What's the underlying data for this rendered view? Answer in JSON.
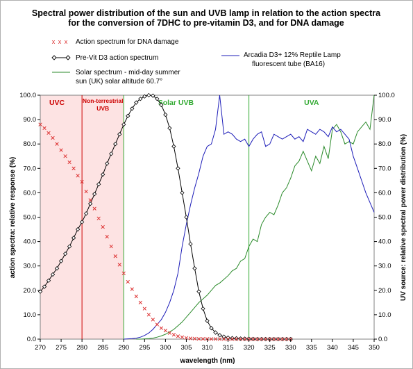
{
  "chart_data": {
    "type": "line",
    "title_line1": "Spectral power distribution of the sun and UVB lamp in relation to the action spectra",
    "title_line2": "for the conversion of 7DHC to pre-vitamin D3, and for DNA damage",
    "xlabel": "wavelength (nm)",
    "ylabel_left": "action spectra: relative response (%)",
    "ylabel_right": "UV source: relative spectral power distribution (%)",
    "xlim": [
      270,
      350
    ],
    "ylim": [
      0,
      100
    ],
    "x_ticks": [
      270,
      275,
      280,
      285,
      290,
      295,
      300,
      305,
      310,
      315,
      320,
      325,
      330,
      335,
      340,
      345,
      350
    ],
    "y_ticks": [
      "0.0",
      "10.0",
      "20.0",
      "30.0",
      "40.0",
      "50.0",
      "60.0",
      "70.0",
      "80.0",
      "90.0",
      "100.0"
    ],
    "regions": [
      {
        "label": "UVC",
        "x_start": 270,
        "x_end": 280,
        "label_x": 274,
        "color": "#cc0000",
        "shaded": true
      },
      {
        "label_line1": "Non-terrestrial",
        "label_line2": "UVB",
        "x_start": 280,
        "x_end": 290,
        "label_x": 285,
        "color": "#cc0000",
        "shaded": true
      },
      {
        "label": "Solar UVB",
        "x_start": 290,
        "x_end": 320,
        "label_x": 302.5,
        "color": "#33aa33",
        "shaded": false
      },
      {
        "label": "UVA",
        "x_start": 320,
        "x_end": 350,
        "label_x": 335,
        "color": "#33aa33",
        "shaded": false
      }
    ],
    "boundaries": [
      {
        "x": 280,
        "color": "#cc0000"
      },
      {
        "x": 290,
        "color": "#33aa33"
      },
      {
        "x": 320,
        "color": "#33aa33"
      }
    ],
    "series": [
      {
        "name": "Action spectrum for DNA damage",
        "color": "#dd3333",
        "marker": "x",
        "x": [
          270,
          271,
          272,
          273,
          274,
          275,
          276,
          277,
          278,
          279,
          280,
          281,
          282,
          283,
          284,
          285,
          286,
          287,
          288,
          289,
          290,
          291,
          292,
          293,
          294,
          295,
          296,
          297,
          298,
          299,
          300,
          301,
          302,
          303,
          304,
          305,
          306,
          307,
          308,
          309,
          310,
          311,
          312,
          313,
          314,
          315,
          316,
          317,
          318,
          319,
          320,
          321,
          322,
          323,
          324,
          325,
          326,
          327,
          328,
          329,
          330
        ],
        "y": [
          88,
          86.5,
          84.5,
          82.5,
          80,
          77.5,
          75,
          72.5,
          70,
          67,
          64.5,
          60.5,
          57,
          53.5,
          49.5,
          46,
          42,
          38,
          34,
          30.5,
          27,
          23.5,
          20.5,
          17.5,
          15,
          12.5,
          10,
          8,
          6,
          4.5,
          3.5,
          2.5,
          1.8,
          1.2,
          0.8,
          0.5,
          0.3,
          0.2,
          0.1,
          0.1,
          0.1,
          0.05,
          0.05,
          0,
          0,
          0,
          0,
          0,
          0,
          0,
          0,
          0,
          0,
          0,
          0,
          0,
          0,
          0,
          0,
          0,
          0
        ]
      },
      {
        "name": "Pre-Vit D3 action spectrum",
        "color": "#000000",
        "marker": "diamond",
        "x": [
          270,
          271,
          272,
          273,
          274,
          275,
          276,
          277,
          278,
          279,
          280,
          281,
          282,
          283,
          284,
          285,
          286,
          287,
          288,
          289,
          290,
          291,
          292,
          293,
          294,
          295,
          296,
          297,
          298,
          299,
          300,
          301,
          302,
          303,
          304,
          305,
          306,
          307,
          308,
          309,
          310,
          311,
          312,
          313,
          314,
          315,
          316,
          317,
          318,
          319,
          320,
          321,
          322,
          323,
          324,
          325,
          326,
          327,
          328,
          329,
          330
        ],
        "y": [
          19.5,
          21.5,
          24,
          26.5,
          29,
          32,
          35,
          38,
          41.5,
          45,
          48,
          51.5,
          55.5,
          59.5,
          63.5,
          67.5,
          72,
          76,
          80,
          84,
          88,
          91.5,
          94.5,
          97,
          98.5,
          99.5,
          100,
          99.8,
          98.5,
          96,
          92,
          86.5,
          79,
          70,
          60,
          50,
          39,
          29,
          19.5,
          12.5,
          7.5,
          4.5,
          2.7,
          1.6,
          1,
          0.6,
          0.4,
          0.3,
          0.2,
          0.15,
          0.1,
          0.05,
          0,
          0,
          0,
          0,
          0,
          0,
          0,
          0,
          0
        ]
      },
      {
        "name_line1": "Solar spectrum - mid-day summer",
        "name_line2": "sun (UK)  solar altitude 60.7°",
        "color": "#2a8a2a",
        "marker": "none",
        "x": [
          293,
          294,
          295,
          296,
          297,
          298,
          299,
          300,
          301,
          302,
          303,
          304,
          305,
          306,
          307,
          308,
          309,
          310,
          311,
          312,
          313,
          314,
          315,
          316,
          317,
          318,
          319,
          320,
          321,
          322,
          323,
          324,
          325,
          326,
          327,
          328,
          329,
          330,
          331,
          332,
          333,
          334,
          335,
          336,
          337,
          338,
          339,
          340,
          341,
          342,
          343,
          344,
          345,
          346,
          347,
          348,
          349,
          350
        ],
        "y": [
          0,
          0,
          0.1,
          0.2,
          0.4,
          0.8,
          1.3,
          2,
          3,
          4,
          5.5,
          7,
          9,
          11,
          13,
          15,
          16.5,
          18,
          20,
          22,
          23,
          24.5,
          26,
          28,
          29,
          32,
          33,
          38,
          41,
          40,
          47,
          50,
          52,
          51,
          55,
          60,
          62,
          66,
          71,
          73,
          77,
          73,
          69,
          75,
          72,
          79,
          74,
          86,
          88,
          85,
          80,
          81,
          80,
          85,
          87,
          89,
          86,
          100
        ]
      },
      {
        "name_line1": "Arcadia D3+ 12% Reptile Lamp",
        "name_line2": "fluorescent tube  (BA16)",
        "color": "#1c1cb8",
        "marker": "none",
        "x": [
          290,
          291,
          292,
          293,
          294,
          295,
          296,
          297,
          298,
          299,
          300,
          301,
          302,
          303,
          304,
          305,
          306,
          307,
          308,
          309,
          310,
          311,
          312,
          313,
          314,
          315,
          316,
          317,
          318,
          319,
          320,
          321,
          322,
          323,
          324,
          325,
          326,
          327,
          328,
          329,
          330,
          331,
          332,
          333,
          334,
          335,
          336,
          337,
          338,
          339,
          340,
          341,
          342,
          343,
          344,
          345,
          346,
          347,
          348,
          349,
          350
        ],
        "y": [
          0,
          0.1,
          0.2,
          0.4,
          0.8,
          1.5,
          2.5,
          4,
          6,
          8,
          11,
          15,
          20,
          27,
          38,
          47,
          55,
          62,
          68,
          75,
          79,
          80,
          86,
          100,
          84,
          85,
          84,
          82,
          81,
          82,
          79,
          82,
          84,
          85,
          79,
          80,
          84,
          83,
          82,
          83,
          84,
          82,
          83,
          81,
          86,
          85,
          84,
          86,
          85,
          83,
          87,
          85,
          86,
          84,
          82,
          75,
          70,
          65,
          60,
          56,
          52
        ]
      }
    ],
    "legend": [
      {
        "text": "Action spectrum for DNA damage"
      },
      {
        "text": "Pre-Vit D3 action spectrum"
      },
      {
        "text": "Solar spectrum - mid-day summer"
      },
      {
        "text": "sun (UK)  solar altitude 60.7°"
      },
      {
        "text": "Arcadia D3+ 12% Reptile Lamp"
      },
      {
        "text": "fluorescent tube  (BA16)"
      }
    ]
  }
}
